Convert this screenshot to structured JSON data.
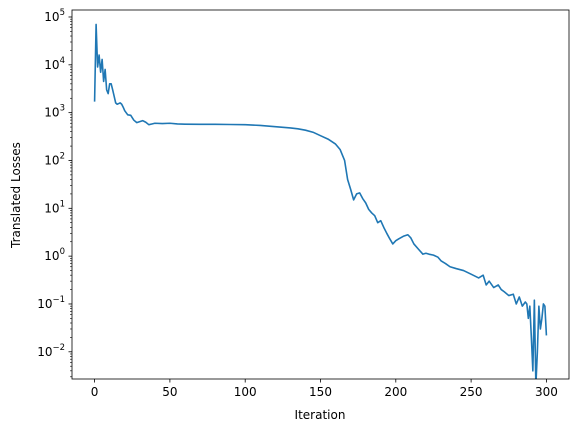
{
  "chart_data": {
    "type": "line",
    "xlabel": "Iteration",
    "ylabel": "Translated Losses",
    "yscale": "log",
    "xlim": [
      -15,
      315
    ],
    "ylim": [
      0.0027,
      140000
    ],
    "x_ticks": [
      {
        "value": 0,
        "label": "0"
      },
      {
        "value": 50,
        "label": "50"
      },
      {
        "value": 100,
        "label": "100"
      },
      {
        "value": 150,
        "label": "150"
      },
      {
        "value": 200,
        "label": "200"
      },
      {
        "value": 250,
        "label": "250"
      },
      {
        "value": 300,
        "label": "300"
      }
    ],
    "y_ticks": [
      {
        "value": 0.01,
        "base": "10",
        "exp": "−2"
      },
      {
        "value": 0.1,
        "base": "10",
        "exp": "−1"
      },
      {
        "value": 1,
        "base": "10",
        "exp": "0"
      },
      {
        "value": 10,
        "base": "10",
        "exp": "1"
      },
      {
        "value": 100,
        "base": "10",
        "exp": "2"
      },
      {
        "value": 1000,
        "base": "10",
        "exp": "3"
      },
      {
        "value": 10000,
        "base": "10",
        "exp": "4"
      },
      {
        "value": 100000,
        "base": "10",
        "exp": "5"
      }
    ],
    "grid": false,
    "legend": "none",
    "series": [
      {
        "color": "#1f77b4",
        "x": [
          0,
          1,
          2,
          3,
          4,
          5,
          6,
          7,
          8,
          9,
          10,
          11,
          12,
          13,
          14,
          15,
          16,
          17,
          18,
          19,
          20,
          22,
          24,
          26,
          28,
          30,
          32,
          34,
          36,
          38,
          40,
          45,
          50,
          55,
          60,
          70,
          80,
          90,
          100,
          110,
          120,
          130,
          135,
          140,
          145,
          150,
          155,
          160,
          163,
          166,
          168,
          170,
          172,
          174,
          176,
          178,
          180,
          182,
          184,
          186,
          188,
          190,
          192,
          194,
          196,
          198,
          200,
          202,
          205,
          208,
          210,
          212,
          215,
          218,
          220,
          222,
          225,
          228,
          230,
          233,
          236,
          240,
          245,
          250,
          255,
          258,
          260,
          262,
          265,
          268,
          270,
          272,
          275,
          278,
          280,
          282,
          284,
          286,
          287,
          288,
          289,
          290,
          291,
          292,
          293,
          294,
          295,
          296,
          297,
          298,
          299,
          300
        ],
        "y": [
          1700,
          70000,
          9000,
          16000,
          7000,
          13000,
          4500,
          8000,
          3000,
          2500,
          4000,
          4000,
          3000,
          2200,
          1600,
          1500,
          1550,
          1600,
          1500,
          1300,
          1100,
          900,
          880,
          700,
          620,
          650,
          680,
          630,
          560,
          580,
          600,
          590,
          600,
          580,
          575,
          570,
          570,
          565,
          560,
          540,
          510,
          480,
          460,
          430,
          390,
          330,
          280,
          220,
          170,
          100,
          40,
          25,
          15,
          20,
          21,
          16,
          13,
          9.5,
          8,
          7,
          5,
          5.5,
          4,
          3,
          2.3,
          1.8,
          2.1,
          2.3,
          2.6,
          2.8,
          2.4,
          1.8,
          1.4,
          1.1,
          1.15,
          1.1,
          1.05,
          0.95,
          0.8,
          0.7,
          0.6,
          0.55,
          0.5,
          0.42,
          0.35,
          0.4,
          0.25,
          0.3,
          0.22,
          0.25,
          0.2,
          0.18,
          0.15,
          0.16,
          0.1,
          0.14,
          0.09,
          0.11,
          0.1,
          0.05,
          0.09,
          0.02,
          0.004,
          0.12,
          0.002,
          0.01,
          0.09,
          0.03,
          0.05,
          0.1,
          0.09,
          0.022
        ]
      }
    ]
  }
}
